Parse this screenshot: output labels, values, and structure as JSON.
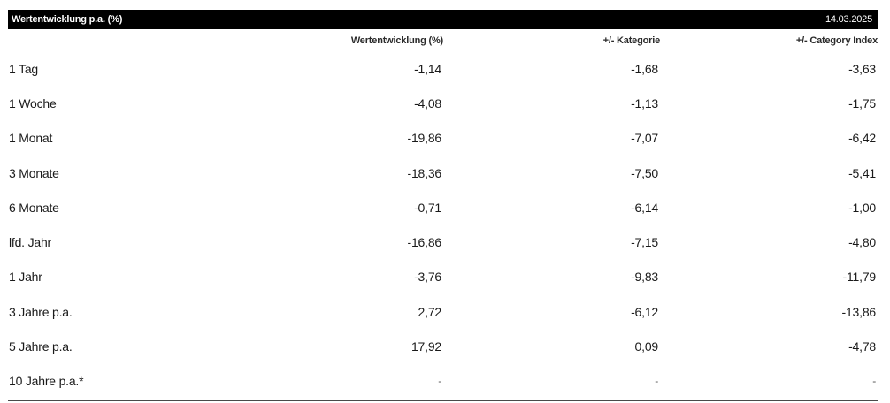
{
  "header": {
    "title": "Wertentwicklung p.a. (%)",
    "date": "14.03.2025"
  },
  "columns": [
    "",
    "Wertentwicklung (%)",
    "+/- Kategorie",
    "+/- Category Index"
  ],
  "rows": [
    {
      "label": "1 Tag",
      "perf": "-1,14",
      "cat": "-1,68",
      "idx": "-3,63"
    },
    {
      "label": "1 Woche",
      "perf": "-4,08",
      "cat": "-1,13",
      "idx": "-1,75"
    },
    {
      "label": "1 Monat",
      "perf": "-19,86",
      "cat": "-7,07",
      "idx": "-6,42"
    },
    {
      "label": "3 Monate",
      "perf": "-18,36",
      "cat": "-7,50",
      "idx": "-5,41"
    },
    {
      "label": "6 Monate",
      "perf": "-0,71",
      "cat": "-6,14",
      "idx": "-1,00"
    },
    {
      "label": "lfd. Jahr",
      "perf": "-16,86",
      "cat": "-7,15",
      "idx": "-4,80"
    },
    {
      "label": "1 Jahr",
      "perf": "-3,76",
      "cat": "-9,83",
      "idx": "-11,79"
    },
    {
      "label": "3 Jahre p.a.",
      "perf": "2,72",
      "cat": "-6,12",
      "idx": "-13,86"
    },
    {
      "label": "5 Jahre p.a.",
      "perf": "17,92",
      "cat": "0,09",
      "idx": "-4,78"
    },
    {
      "label": "10 Jahre p.a.*",
      "perf": "-",
      "cat": "-",
      "idx": "-"
    }
  ]
}
